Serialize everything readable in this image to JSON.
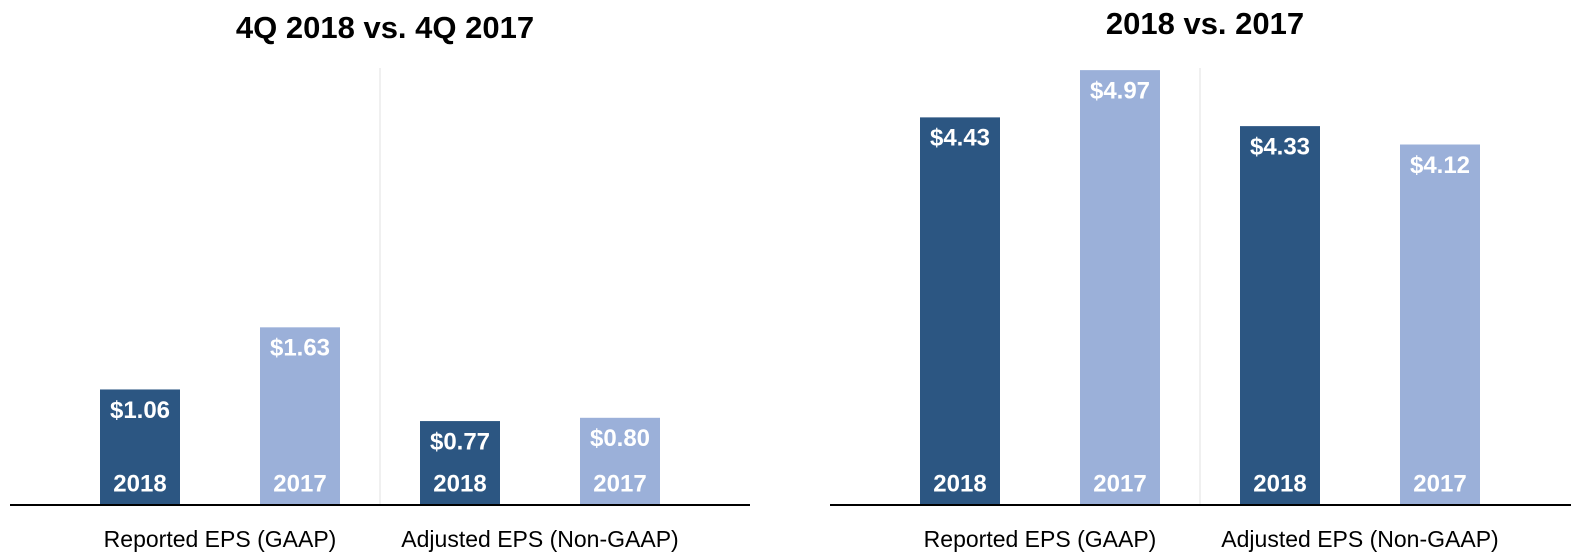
{
  "chart_data": [
    {
      "type": "bar",
      "title": "4Q 2018 vs. 4Q 2017",
      "categories": [
        "Reported EPS (GAAP)",
        "Adjusted EPS (Non-GAAP)"
      ],
      "series": [
        {
          "name": "2018",
          "color": "#2c5682",
          "values": [
            1.06,
            0.77
          ],
          "value_labels": [
            "$1.06",
            "$0.77"
          ]
        },
        {
          "name": "2017",
          "color": "#9bb0d9",
          "values": [
            1.63,
            0.8
          ],
          "value_labels": [
            "$1.63",
            "$0.80"
          ]
        }
      ]
    },
    {
      "type": "bar",
      "title": "2018 vs. 2017",
      "categories": [
        "Reported EPS (GAAP)",
        "Adjusted EPS (Non-GAAP)"
      ],
      "series": [
        {
          "name": "2018",
          "color": "#2c5682",
          "values": [
            4.43,
            4.33
          ],
          "value_labels": [
            "$4.43",
            "$4.33"
          ]
        },
        {
          "name": "2017",
          "color": "#9bb0d9",
          "values": [
            4.97,
            4.12
          ],
          "value_labels": [
            "$4.97",
            "$4.12"
          ]
        }
      ]
    }
  ]
}
